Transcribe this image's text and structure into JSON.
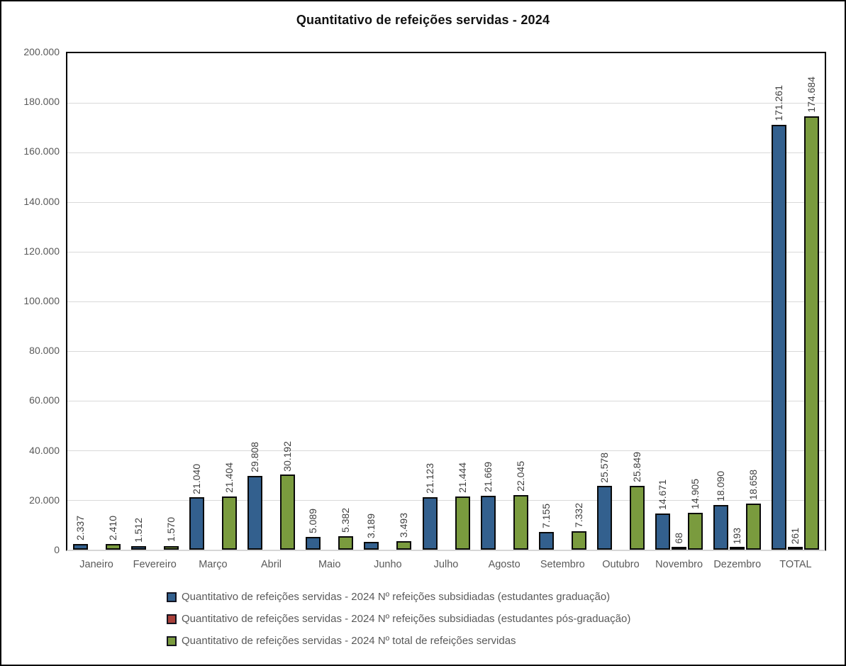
{
  "title": "Quantitativo de refeições servidas - 2024",
  "colors": {
    "graduacao": "#33608E",
    "pos_graduacao": "#A8403A",
    "total": "#7A9B3E",
    "bar_border": "#0a0a0a",
    "axis_text": "#595959",
    "data_label_text": "#3f3f3f",
    "gridline": "#D9D9D9"
  },
  "chart_data": {
    "type": "bar",
    "title": "Quantitativo de refeições servidas - 2024",
    "categories": [
      "Janeiro",
      "Fevereiro",
      "Março",
      "Abril",
      "Maio",
      "Junho",
      "Julho",
      "Agosto",
      "Setembro",
      "Outubro",
      "Novembro",
      "Dezembro",
      "TOTAL"
    ],
    "series": [
      {
        "key": "graduacao",
        "name": "Quantitativo de refeições servidas - 2024 Nº refeições subsidiadas (estudantes graduação)",
        "values": [
          2337,
          1512,
          21040,
          29808,
          5089,
          3189,
          21123,
          21669,
          7155,
          25578,
          14671,
          18090,
          171261
        ],
        "labels": [
          "2.337",
          "1.512",
          "21.040",
          "29.808",
          "5.089",
          "3.189",
          "21.123",
          "21.669",
          "7.155",
          "25.578",
          "14.671",
          "18.090",
          "171.261"
        ]
      },
      {
        "key": "pos-graduacao",
        "name": "Quantitativo de refeições servidas - 2024 Nº refeições subsidiadas (estudantes pós-graduação)",
        "values": [
          null,
          null,
          null,
          null,
          null,
          null,
          null,
          null,
          null,
          null,
          68,
          193,
          261
        ],
        "labels": [
          null,
          null,
          null,
          null,
          null,
          null,
          null,
          null,
          null,
          null,
          "68",
          "193",
          "261"
        ]
      },
      {
        "key": "total",
        "name": "Quantitativo de refeições servidas - 2024 Nº total de refeições servidas",
        "values": [
          2410,
          1570,
          21404,
          30192,
          5382,
          3493,
          21444,
          22045,
          7332,
          25849,
          14905,
          18658,
          174684
        ],
        "labels": [
          "2.410",
          "1.570",
          "21.404",
          "30.192",
          "5.382",
          "3.493",
          "21.444",
          "22.045",
          "7.332",
          "25.849",
          "14.905",
          "18.658",
          "174.684"
        ]
      }
    ],
    "y_axis": {
      "min": 0,
      "max": 200000,
      "step": 20000,
      "ticks": [
        "200.000",
        "180.000",
        "160.000",
        "140.000",
        "120.000",
        "100.000",
        "80.000",
        "60.000",
        "40.000",
        "20.000",
        "0"
      ]
    },
    "grid": true,
    "legend_position": "bottom"
  }
}
